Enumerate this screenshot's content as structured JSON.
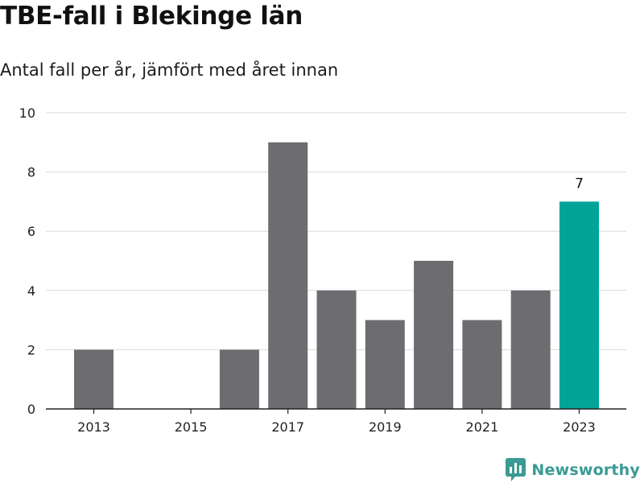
{
  "chart_data": {
    "type": "bar",
    "title": "TBE-fall i Blekinge län",
    "subtitle": "Antal fall per år, jämfört med året innan",
    "categories": [
      "2013",
      "2014",
      "2015",
      "2016",
      "2017",
      "2018",
      "2019",
      "2020",
      "2021",
      "2022",
      "2023"
    ],
    "values": [
      2,
      0,
      0,
      2,
      9,
      4,
      3,
      5,
      3,
      4,
      7
    ],
    "x_tick_labels": [
      "2013",
      "2015",
      "2017",
      "2019",
      "2021",
      "2023"
    ],
    "y_ticks": [
      0,
      2,
      4,
      6,
      8,
      10
    ],
    "ylim": [
      0,
      10
    ],
    "xlabel": "",
    "ylabel": "",
    "grid": true,
    "highlight_category": "2023",
    "data_labels": [
      {
        "category": "2023",
        "text": "7"
      }
    ],
    "colors": {
      "bar": "#6d6c71",
      "highlight": "#00a598",
      "grid": "#d9d9d9",
      "axis": "#222222"
    }
  },
  "brand": {
    "name": "Newsworthy",
    "icon": "newsworthy-logo-icon",
    "color": "#3a9a94"
  }
}
